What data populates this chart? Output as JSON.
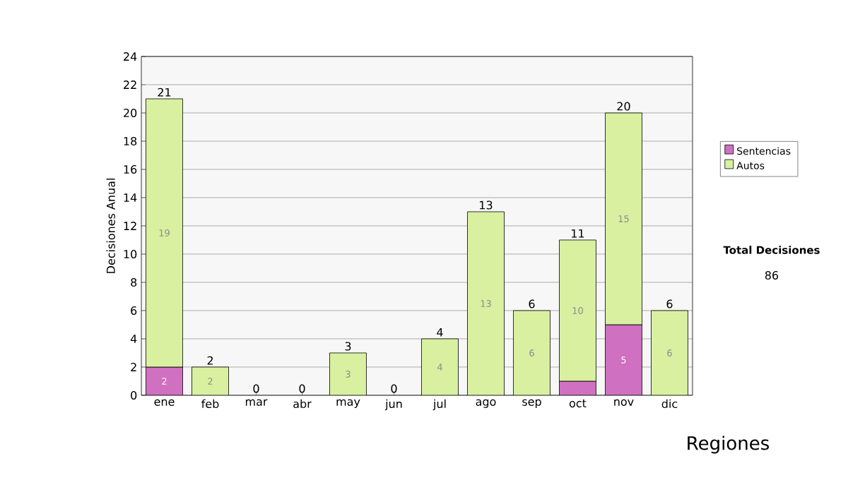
{
  "chart_data": {
    "type": "bar",
    "stacked": true,
    "ylabel": "Decisiones Anual",
    "categories": [
      "ene",
      "feb",
      "mar",
      "abr",
      "may",
      "jun",
      "jul",
      "ago",
      "sep",
      "oct",
      "nov",
      "dic"
    ],
    "series": [
      {
        "name": "Sentencias",
        "color": "#d070c0",
        "values": [
          2,
          0,
          0,
          0,
          0,
          0,
          0,
          0,
          0,
          1,
          5,
          0
        ],
        "value_labels": [
          "2",
          null,
          null,
          null,
          null,
          null,
          null,
          null,
          null,
          null,
          "5",
          null
        ]
      },
      {
        "name": "Autos",
        "color": "#d8f0a0",
        "values": [
          19,
          2,
          0,
          0,
          3,
          0,
          4,
          13,
          6,
          10,
          15,
          6
        ],
        "value_labels": [
          "19",
          "2",
          null,
          null,
          "3",
          null,
          "4",
          "13",
          "6",
          "10",
          "15",
          "6"
        ]
      }
    ],
    "totals": [
      "21",
      "2",
      "0",
      "0",
      "3",
      "0",
      "4",
      "13",
      "6",
      "11",
      "20",
      "6"
    ],
    "ylim": [
      0,
      24
    ],
    "yticks": [
      0,
      2,
      4,
      6,
      8,
      10,
      12,
      14,
      16,
      18,
      20,
      22,
      24
    ],
    "grid": "y",
    "legend": "right",
    "annotations": [
      "Total Decisiones",
      "86",
      "Regiones"
    ]
  }
}
